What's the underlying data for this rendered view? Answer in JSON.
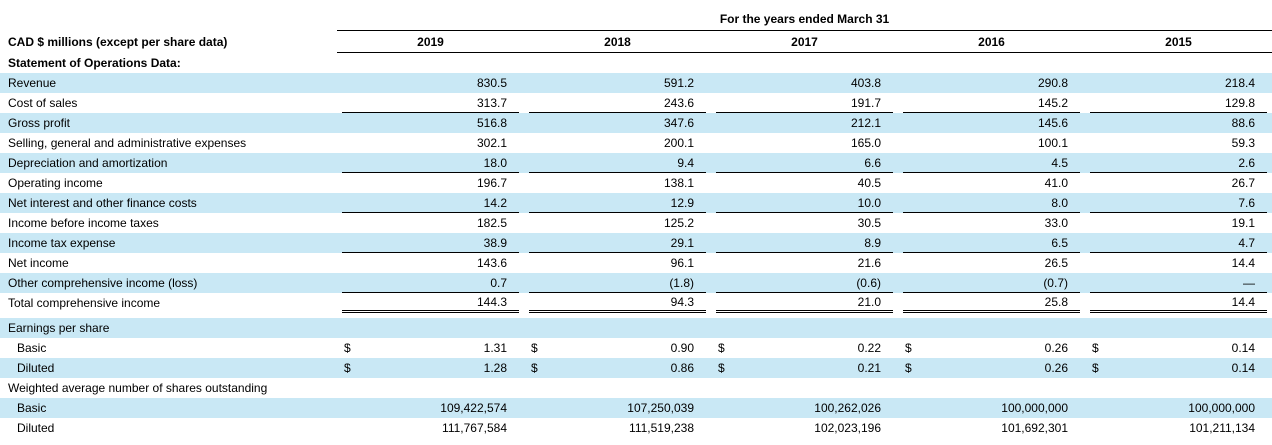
{
  "page": {
    "background_color": "#ffffff",
    "highlight_color": "#c9e8f5",
    "text_color": "#000000"
  },
  "table": {
    "period_header": "For the years ended March 31",
    "caption": "CAD $ millions (except per share data)",
    "years": [
      "2019",
      "2018",
      "2017",
      "2016",
      "2015"
    ],
    "rows": [
      {
        "name": "statement-of-operations-data",
        "label": "Statement of Operations Data:",
        "bold": true,
        "shaded": false,
        "values": []
      },
      {
        "name": "revenue",
        "label": "Revenue",
        "shaded": true,
        "values": [
          "830.5",
          "591.2",
          "403.8",
          "290.8",
          "218.4"
        ]
      },
      {
        "name": "cost-of-sales",
        "label": "Cost of sales",
        "shaded": false,
        "underline": "single",
        "values": [
          "313.7",
          "243.6",
          "191.7",
          "145.2",
          "129.8"
        ]
      },
      {
        "name": "gross-profit",
        "label": "Gross profit",
        "shaded": true,
        "values": [
          "516.8",
          "347.6",
          "212.1",
          "145.6",
          "88.6"
        ]
      },
      {
        "name": "sga-expenses",
        "label": "Selling, general and administrative expenses",
        "shaded": false,
        "values": [
          "302.1",
          "200.1",
          "165.0",
          "100.1",
          "59.3"
        ]
      },
      {
        "name": "depreciation-amortization",
        "label": "Depreciation and amortization",
        "shaded": true,
        "underline": "single",
        "values": [
          "18.0",
          "9.4",
          "6.6",
          "4.5",
          "2.6"
        ]
      },
      {
        "name": "operating-income",
        "label": "Operating income",
        "shaded": false,
        "values": [
          "196.7",
          "138.1",
          "40.5",
          "41.0",
          "26.7"
        ]
      },
      {
        "name": "net-interest-finance-costs",
        "label": "Net interest and other finance costs",
        "shaded": true,
        "underline": "single",
        "values": [
          "14.2",
          "12.9",
          "10.0",
          "8.0",
          "7.6"
        ]
      },
      {
        "name": "income-before-income-taxes",
        "label": "Income before income taxes",
        "shaded": false,
        "values": [
          "182.5",
          "125.2",
          "30.5",
          "33.0",
          "19.1"
        ]
      },
      {
        "name": "income-tax-expense",
        "label": "Income tax expense",
        "shaded": true,
        "underline": "single",
        "values": [
          "38.9",
          "29.1",
          "8.9",
          "6.5",
          "4.7"
        ]
      },
      {
        "name": "net-income",
        "label": "Net income",
        "shaded": false,
        "values": [
          "143.6",
          "96.1",
          "21.6",
          "26.5",
          "14.4"
        ]
      },
      {
        "name": "other-comprehensive-income-loss",
        "label": "Other comprehensive income (loss)",
        "shaded": true,
        "underline": "single",
        "values": [
          "0.7",
          "(1.8)",
          "(0.6)",
          "(0.7)",
          "—"
        ]
      },
      {
        "name": "total-comprehensive-income",
        "label": "Total comprehensive income",
        "shaded": false,
        "underline": "double",
        "values": [
          "144.3",
          "94.3",
          "21.0",
          "25.8",
          "14.4"
        ]
      },
      {
        "name": "gap-after-total-comprehensive-income",
        "spacer": true
      },
      {
        "name": "earnings-per-share",
        "label": "Earnings per share",
        "shaded": true,
        "values": []
      },
      {
        "name": "eps-basic",
        "label": "Basic",
        "indent": true,
        "dollar": true,
        "shaded": false,
        "values": [
          "1.31",
          "0.90",
          "0.22",
          "0.26",
          "0.14"
        ]
      },
      {
        "name": "eps-diluted",
        "label": "Diluted",
        "indent": true,
        "dollar": true,
        "shaded": true,
        "values": [
          "1.28",
          "0.86",
          "0.21",
          "0.26",
          "0.14"
        ]
      },
      {
        "name": "weighted-average-shares-outstanding",
        "label": "Weighted average number of shares outstanding",
        "shaded": false,
        "values": []
      },
      {
        "name": "shares-basic",
        "label": "Basic",
        "indent": true,
        "shaded": true,
        "values": [
          "109,422,574",
          "107,250,039",
          "100,262,026",
          "100,000,000",
          "100,000,000"
        ]
      },
      {
        "name": "shares-diluted",
        "label": "Diluted",
        "indent": true,
        "shaded": false,
        "values": [
          "111,767,584",
          "111,519,238",
          "102,023,196",
          "101,692,301",
          "101,211,134"
        ]
      }
    ],
    "currency_symbol": "$"
  }
}
